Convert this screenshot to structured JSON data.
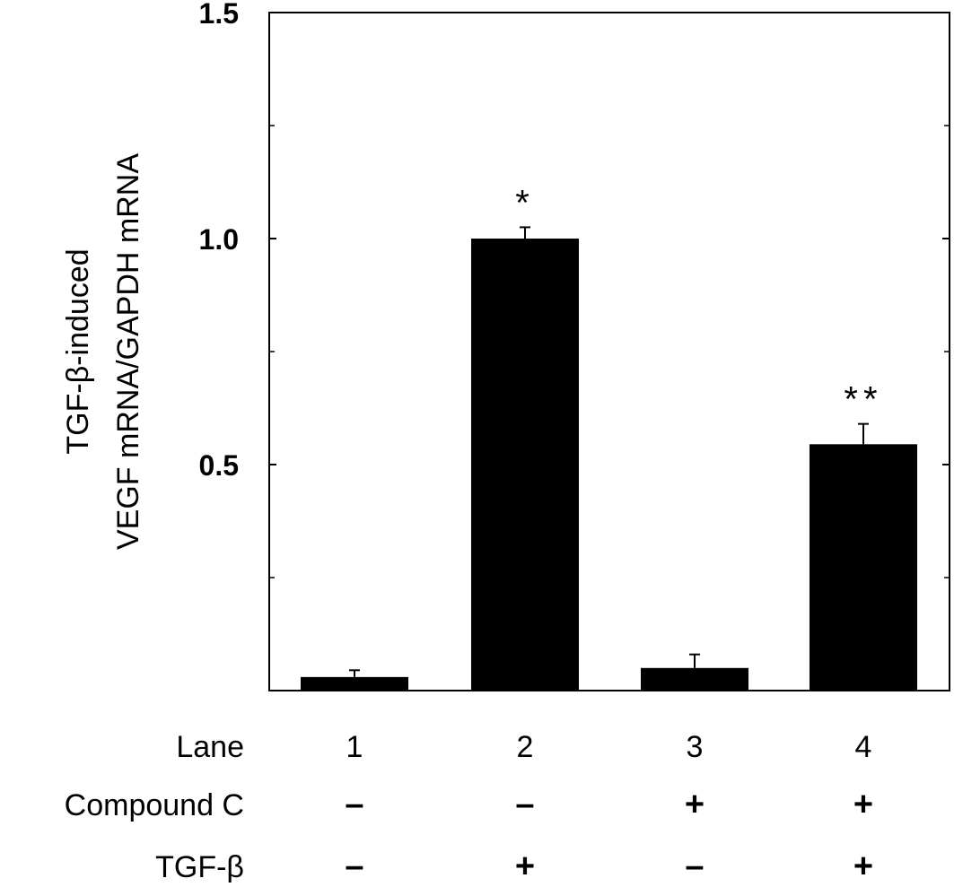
{
  "chart_data": {
    "type": "bar",
    "title": "",
    "ylabel_lines": [
      "TGF-β-induced",
      "VEGF mRNA/GAPDH mRNA"
    ],
    "ylim": [
      0,
      1.5
    ],
    "y_ticks": [
      {
        "value": 0.5,
        "label": "0.5"
      },
      {
        "value": 1.0,
        "label": "1.0"
      },
      {
        "value": 1.5,
        "label": "1.5"
      }
    ],
    "y_minor_ticks": [
      0.25,
      0.75,
      1.25
    ],
    "bar_color": "#000000",
    "bars": [
      {
        "lane": "1",
        "value": 0.03,
        "error": 0.015,
        "annotation": ""
      },
      {
        "lane": "2",
        "value": 1.0,
        "error": 0.025,
        "annotation": "*"
      },
      {
        "lane": "3",
        "value": 0.05,
        "error": 0.03,
        "annotation": ""
      },
      {
        "lane": "4",
        "value": 0.545,
        "error": 0.045,
        "annotation": "**"
      }
    ],
    "conditions": [
      {
        "label": "Lane",
        "values": [
          "1",
          "2",
          "3",
          "4"
        ]
      },
      {
        "label": "Compound C",
        "values": [
          "–",
          "–",
          "+",
          "+"
        ]
      },
      {
        "label": "TGF-β",
        "values": [
          "–",
          "+",
          "–",
          "+"
        ]
      }
    ]
  }
}
